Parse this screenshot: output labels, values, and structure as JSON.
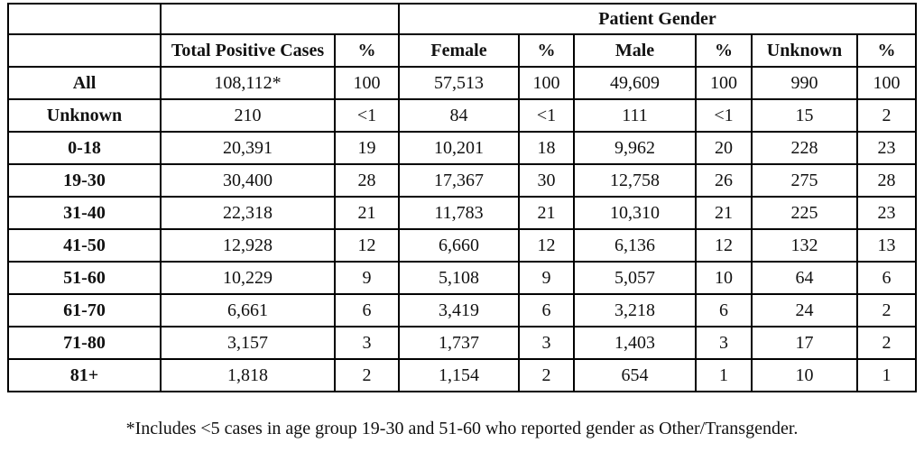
{
  "table": {
    "gender_group_header": "Patient Gender",
    "columns": [
      "",
      "Total Positive Cases",
      "%",
      "Female",
      "%",
      "Male",
      "%",
      "Unknown",
      "%"
    ],
    "rows": [
      [
        "All",
        "108,112*",
        "100",
        "57,513",
        "100",
        "49,609",
        "100",
        "990",
        "100"
      ],
      [
        "Unknown",
        "210",
        "<1",
        "84",
        "<1",
        "111",
        "<1",
        "15",
        "2"
      ],
      [
        "0-18",
        "20,391",
        "19",
        "10,201",
        "18",
        "9,962",
        "20",
        "228",
        "23"
      ],
      [
        "19-30",
        "30,400",
        "28",
        "17,367",
        "30",
        "12,758",
        "26",
        "275",
        "28"
      ],
      [
        "31-40",
        "22,318",
        "21",
        "11,783",
        "21",
        "10,310",
        "21",
        "225",
        "23"
      ],
      [
        "41-50",
        "12,928",
        "12",
        "6,660",
        "12",
        "6,136",
        "12",
        "132",
        "13"
      ],
      [
        "51-60",
        "10,229",
        "9",
        "5,108",
        "9",
        "5,057",
        "10",
        "64",
        "6"
      ],
      [
        "61-70",
        "6,661",
        "6",
        "3,419",
        "6",
        "3,218",
        "6",
        "24",
        "2"
      ],
      [
        "71-80",
        "3,157",
        "3",
        "1,737",
        "3",
        "1,403",
        "3",
        "17",
        "2"
      ],
      [
        "81+",
        "1,818",
        "2",
        "1,154",
        "2",
        "654",
        "1",
        "10",
        "1"
      ]
    ],
    "footnote": "*Includes <5 cases in age group 19-30 and 51-60 who reported gender as Other/Transgender."
  }
}
